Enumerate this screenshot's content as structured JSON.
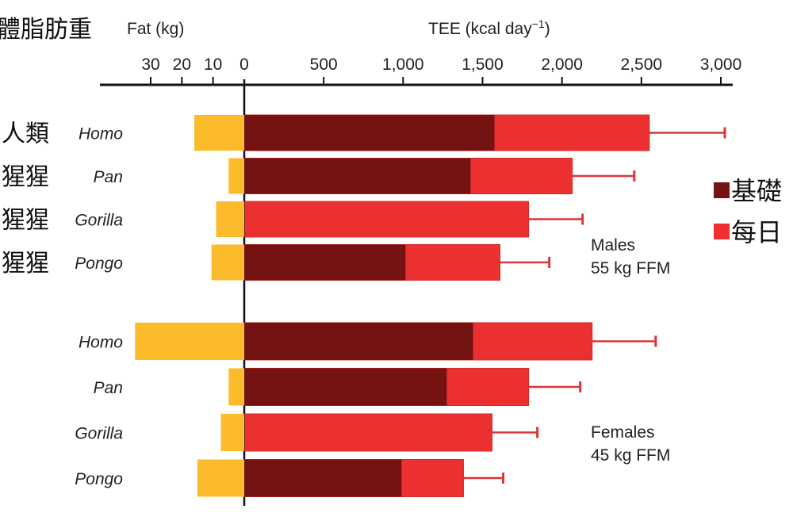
{
  "chart_data": {
    "type": "bar",
    "orientation": "horizontal",
    "stacked": true,
    "title_left_cjk": "體脂肪重",
    "fat_axis": {
      "label": "Fat (kg)",
      "ticks": [
        30,
        20,
        10,
        0
      ],
      "tick_labels": [
        "30",
        "20",
        "10",
        "0"
      ],
      "range": [
        0,
        35
      ],
      "direction": "leftward"
    },
    "tee_axis": {
      "label_main": "TEE (kcal day",
      "label_sup": "−1",
      "label_close": ")",
      "ticks": [
        0,
        500,
        1000,
        1500,
        2000,
        2500,
        3000
      ],
      "tick_labels": [
        "0",
        "500",
        "1,000",
        "1,500",
        "2,000",
        "2,500",
        "3,000"
      ],
      "range": [
        0,
        3000
      ]
    },
    "legend": {
      "placement": "right",
      "items": [
        {
          "label": "基礎",
          "color": "#751212"
        },
        {
          "label": "每日",
          "color": "#ec3030"
        }
      ]
    },
    "colors": {
      "fat": "#fbbb2a",
      "bmr": "#751212",
      "tee": "#ec3030",
      "error": "#d9353a",
      "axis": "#111111"
    },
    "groups": [
      {
        "name": "Males",
        "subtitle": "55 kg FFM",
        "rows": [
          {
            "genus": "Homo",
            "cjk": "人類",
            "fat": 16,
            "bmr": 1575,
            "tee": 2550,
            "tee_err_upper": 3025
          },
          {
            "genus": "Pan",
            "cjk": "猩猩",
            "fat": 5,
            "bmr": 1425,
            "tee": 2065,
            "tee_err_upper": 2455
          },
          {
            "genus": "Gorilla",
            "cjk": "猩猩",
            "fat": 9,
            "bmr": null,
            "tee": 1790,
            "tee_err_upper": 2130
          },
          {
            "genus": "Pongo",
            "cjk": "猩猩",
            "fat": 10.5,
            "bmr": 1015,
            "tee": 1610,
            "tee_err_upper": 1920
          }
        ]
      },
      {
        "name": "Females",
        "subtitle": "45 kg FFM",
        "rows": [
          {
            "genus": "Homo",
            "cjk": "",
            "fat": 35,
            "bmr": 1440,
            "tee": 2190,
            "tee_err_upper": 2590
          },
          {
            "genus": "Pan",
            "cjk": "",
            "fat": 5,
            "bmr": 1275,
            "tee": 1790,
            "tee_err_upper": 2115
          },
          {
            "genus": "Gorilla",
            "cjk": "",
            "fat": 7.5,
            "bmr": null,
            "tee": 1560,
            "tee_err_upper": 1845
          },
          {
            "genus": "Pongo",
            "cjk": "",
            "fat": 15,
            "bmr": 990,
            "tee": 1380,
            "tee_err_upper": 1630
          }
        ]
      }
    ]
  }
}
